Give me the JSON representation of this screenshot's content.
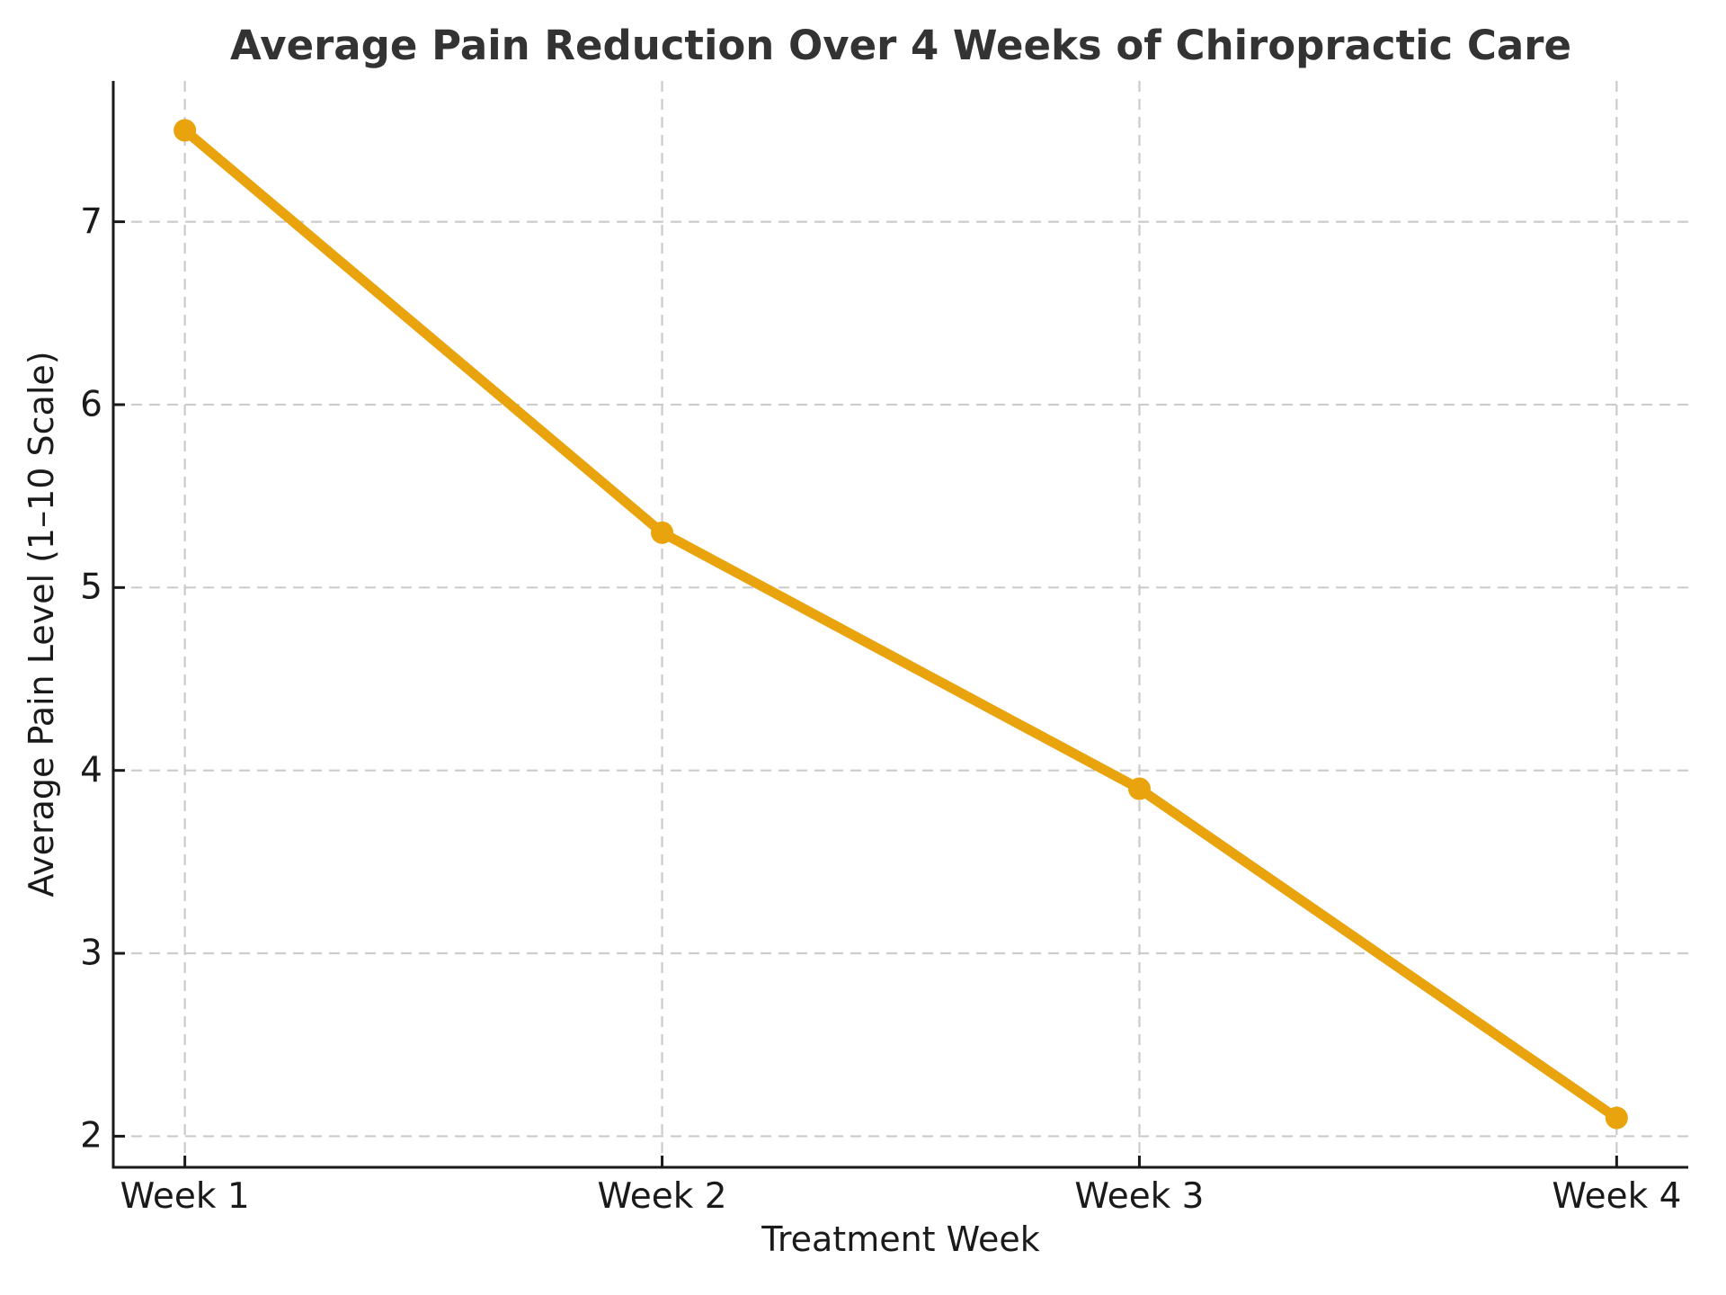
{
  "chart_data": {
    "type": "line",
    "title": "Average Pain Reduction Over 4 Weeks of Chiropractic Care",
    "xlabel": "Treatment Week",
    "ylabel": "Average Pain Level (1–10 Scale)",
    "categories": [
      "Week 1",
      "Week 2",
      "Week 3",
      "Week 4"
    ],
    "series": [
      {
        "name": "Average Pain Level",
        "values": [
          7.5,
          5.3,
          3.9,
          2.1
        ]
      }
    ],
    "yticks": [
      2,
      3,
      4,
      5,
      6,
      7
    ],
    "ylim": [
      1.83,
      7.77
    ],
    "xlim": [
      -0.15,
      3.15
    ],
    "grid": true,
    "grid_style": "dashed",
    "legend": "none",
    "colors": {
      "line": "#E8A30D",
      "marker": "#E8A30D",
      "grid": "#cbcbcb",
      "axis": "#1a1a1a",
      "title": "#333333",
      "background": "#ffffff"
    }
  }
}
